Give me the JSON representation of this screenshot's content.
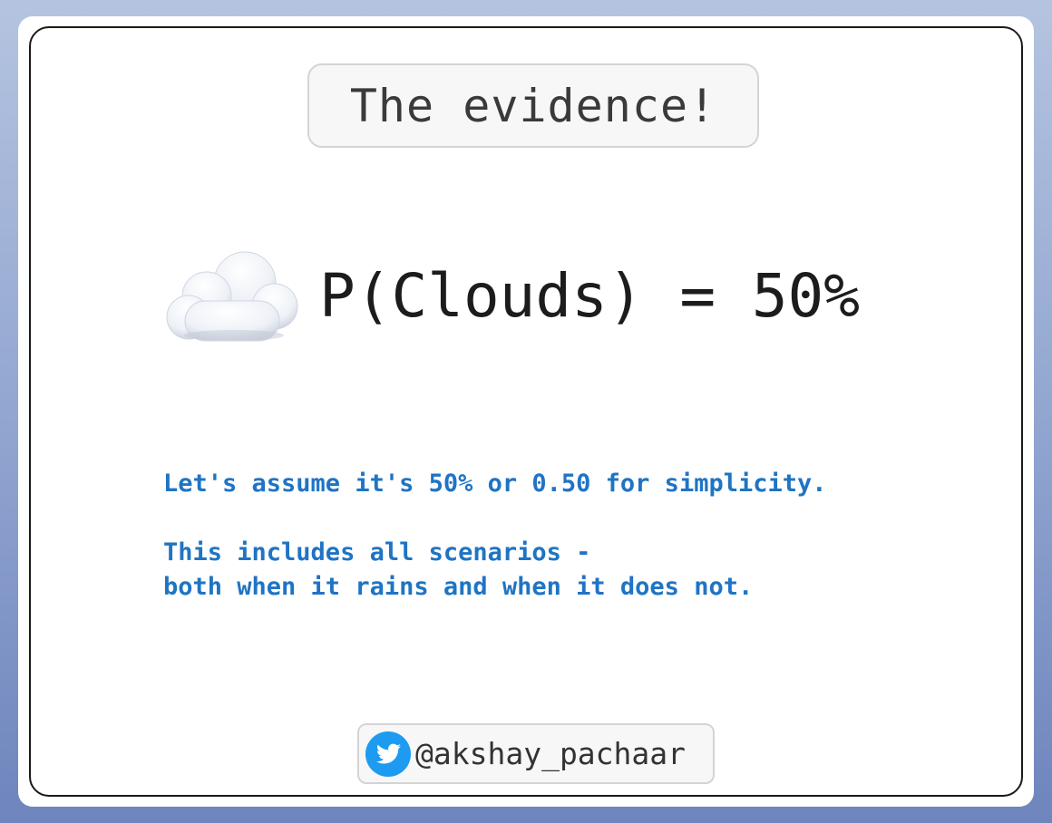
{
  "title": "The evidence!",
  "formula": {
    "icon": "cloud-icon",
    "text": "P(Clouds) = 50%"
  },
  "notes": {
    "line1": "Let's assume it's 50% or 0.50 for simplicity.",
    "line2": "This includes all scenarios -",
    "line3": "both when it rains and when it does not."
  },
  "footer": {
    "icon": "twitter-bird-icon",
    "handle": "@akshay_pachaar"
  },
  "colors": {
    "note_text": "#1f74c4",
    "twitter_blue": "#1d9bf0",
    "frame_border": "#1a1a1a"
  }
}
